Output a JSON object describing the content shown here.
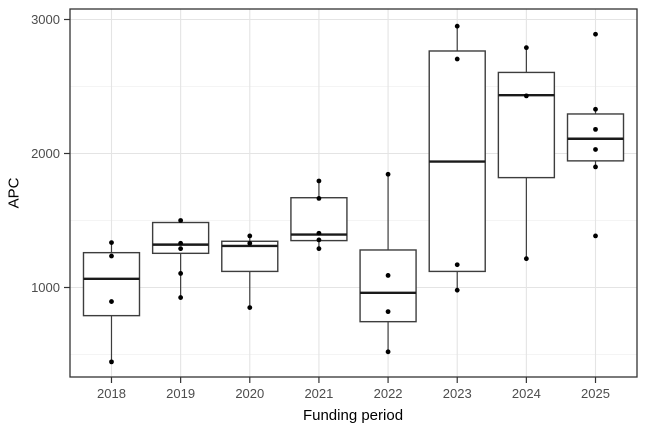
{
  "chart_data": {
    "type": "boxplot",
    "title": "",
    "xlabel": "Funding period",
    "ylabel": "APC",
    "legend": "none",
    "grid": "on",
    "categories": [
      "2018",
      "2019",
      "2020",
      "2021",
      "2022",
      "2023",
      "2024",
      "2025"
    ],
    "y_axis": {
      "tick_values": [
        1000,
        2000,
        3000
      ],
      "tick_labels": [
        "1000",
        "2000",
        "3000"
      ],
      "minor_gridline_values": [
        500,
        1500,
        2500
      ],
      "range": [
        330,
        3080
      ]
    },
    "series": [
      {
        "label": "2018",
        "whisker_low": 445,
        "q1": 790,
        "median": 1065,
        "q3": 1260,
        "whisker_high": 1335,
        "points": [
          1335,
          1235,
          895,
          445
        ]
      },
      {
        "label": "2019",
        "whisker_low": 925,
        "q1": 1255,
        "median": 1320,
        "q3": 1485,
        "whisker_high": 1500,
        "points": [
          1500,
          1330,
          1290,
          1105,
          925
        ]
      },
      {
        "label": "2020",
        "whisker_low": 850,
        "q1": 1120,
        "median": 1310,
        "q3": 1345,
        "whisker_high": 1385,
        "points": [
          1385,
          1330,
          850
        ]
      },
      {
        "label": "2021",
        "whisker_low": 1290,
        "q1": 1350,
        "median": 1395,
        "q3": 1670,
        "whisker_high": 1795,
        "points": [
          1795,
          1665,
          1405,
          1355,
          1290
        ]
      },
      {
        "label": "2022",
        "whisker_low": 520,
        "q1": 745,
        "median": 960,
        "q3": 1280,
        "whisker_high": 1845,
        "points": [
          1845,
          1090,
          820,
          520
        ]
      },
      {
        "label": "2023",
        "whisker_low": 980,
        "q1": 1120,
        "median": 1940,
        "q3": 2765,
        "whisker_high": 2950,
        "points": [
          2950,
          2705,
          1170,
          980
        ]
      },
      {
        "label": "2024",
        "whisker_low": 1215,
        "q1": 1820,
        "median": 2435,
        "q3": 2605,
        "whisker_high": 2790,
        "points": [
          2790,
          2430,
          1215
        ]
      },
      {
        "label": "2025",
        "whisker_low": 1900,
        "q1": 1945,
        "median": 2110,
        "q3": 2295,
        "whisker_high": 2330,
        "points": [
          2890,
          2330,
          2180,
          2030,
          1900,
          1385
        ]
      }
    ],
    "colors": {
      "panel_border": "#333333",
      "box_stroke": "#3d3d3d",
      "median_stroke": "#1a1a1a",
      "whisker_stroke": "#3d3d3d",
      "point_fill": "#000000",
      "grid_major": "#e4e4e4",
      "grid_minor": "#f1f1f1",
      "tick_mark": "#333333",
      "tick_label": "#4d4d4d",
      "axis_title": "#000000",
      "background": "#ffffff"
    }
  }
}
